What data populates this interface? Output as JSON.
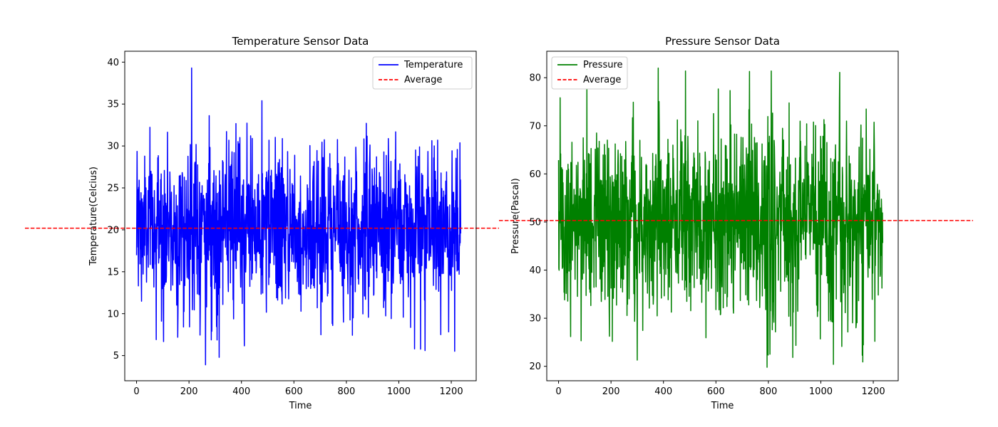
{
  "chart_data": [
    {
      "type": "line",
      "title": "Temperature Sensor Data",
      "xlabel": "Time",
      "ylabel": "Temperature(Celcius)",
      "xlim": [
        -45,
        1295
      ],
      "ylim": [
        2.0,
        41.3
      ],
      "xticks": [
        0,
        200,
        400,
        600,
        800,
        1000,
        1200
      ],
      "yticks": [
        5,
        10,
        15,
        20,
        25,
        30,
        35,
        40
      ],
      "grid": false,
      "legend": {
        "position": "top-right",
        "entries": [
          "Temperature",
          "Average"
        ]
      },
      "series": [
        {
          "name": "Temperature",
          "color": "#0000ff",
          "style": "solid",
          "n_points": 1237,
          "mean": 20.2,
          "std": 4.9,
          "min": 3.9,
          "max": 39.3,
          "notable_points": [
            {
              "x": 75,
              "y": 6.9
            },
            {
              "x": 210,
              "y": 39.3
            },
            {
              "x": 263,
              "y": 3.9
            },
            {
              "x": 478,
              "y": 35.4
            },
            {
              "x": 1060,
              "y": 5.8
            },
            {
              "x": 1100,
              "y": 5.6
            },
            {
              "x": 1160,
              "y": 7.5
            }
          ]
        },
        {
          "name": "Average",
          "color": "#ff0000",
          "style": "dashed",
          "y": 20.2
        }
      ]
    },
    {
      "type": "line",
      "title": "Pressure Sensor Data",
      "xlabel": "Time",
      "ylabel": "Pressure(Pascal)",
      "xlim": [
        -45,
        1295
      ],
      "ylim": [
        17.0,
        85.5
      ],
      "xticks": [
        0,
        200,
        400,
        600,
        800,
        1000,
        1200
      ],
      "yticks": [
        20,
        30,
        40,
        50,
        60,
        70,
        80
      ],
      "grid": false,
      "legend": {
        "position": "top-left",
        "entries": [
          "Pressure",
          "Average"
        ]
      },
      "series": [
        {
          "name": "Pressure",
          "color": "#008000",
          "style": "solid",
          "n_points": 1237,
          "mean": 50.3,
          "std": 9.9,
          "min": 19.8,
          "max": 82.0,
          "notable_points": [
            {
              "x": 300,
              "y": 21.3
            },
            {
              "x": 380,
              "y": 82.0
            },
            {
              "x": 728,
              "y": 81.3
            },
            {
              "x": 795,
              "y": 19.8
            },
            {
              "x": 1072,
              "y": 81.1
            },
            {
              "x": 1160,
              "y": 20.9
            }
          ]
        },
        {
          "name": "Average",
          "color": "#ff0000",
          "style": "dashed",
          "y": 50.3
        }
      ]
    }
  ]
}
